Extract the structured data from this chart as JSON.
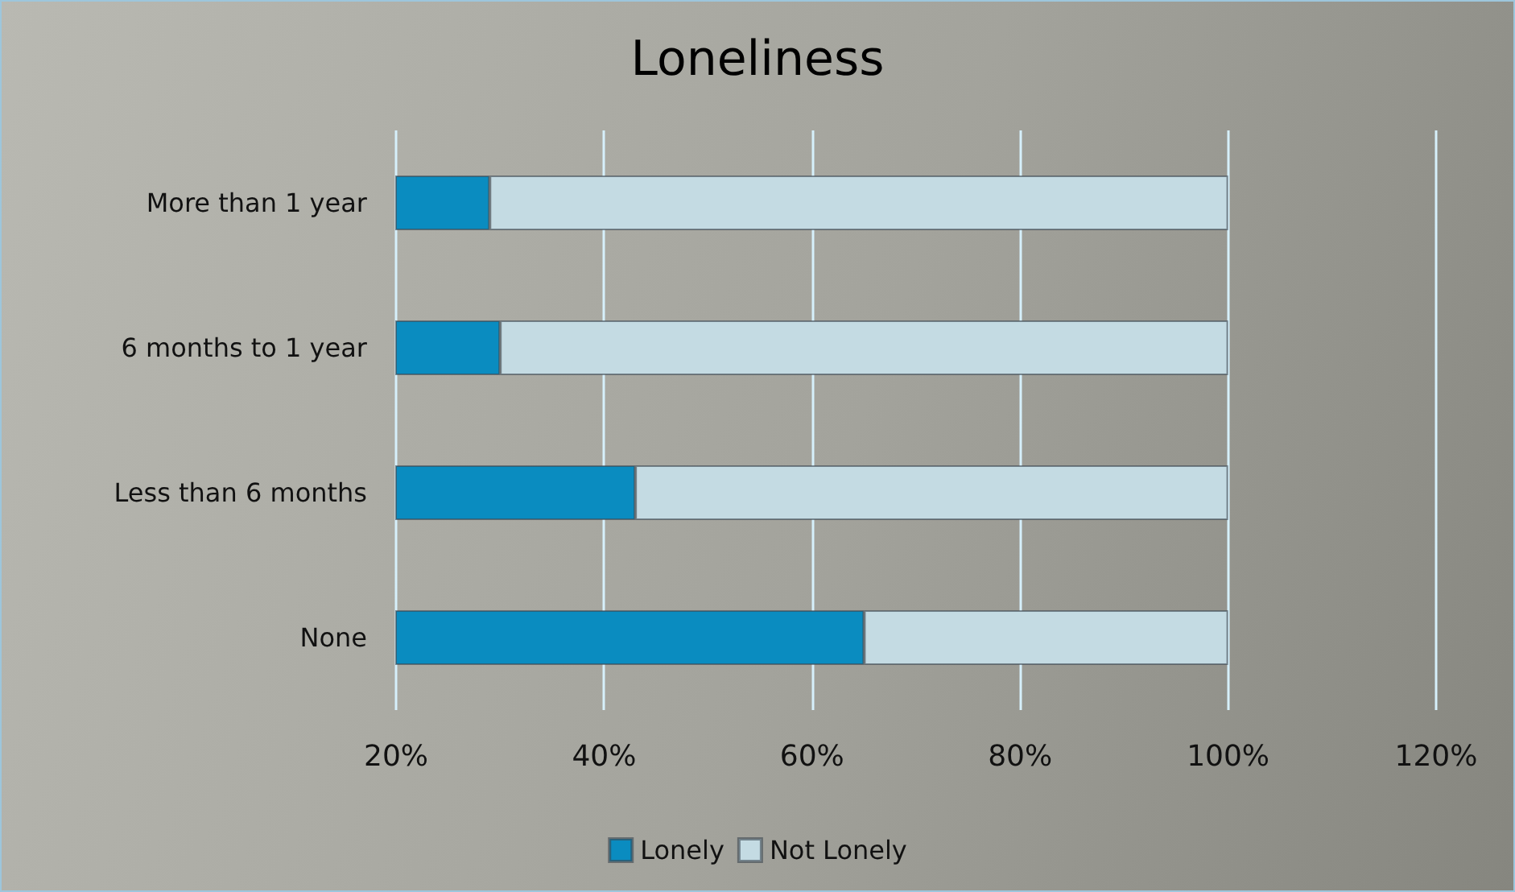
{
  "chart_data": {
    "type": "bar",
    "orientation": "horizontal",
    "stacked": true,
    "title": "Loneliness",
    "categories": [
      "More than 1 year",
      "6 months to 1 year",
      "Less than 6 months",
      "None"
    ],
    "series": [
      {
        "name": "Lonely",
        "color": "#0a8cc0",
        "values": [
          29,
          30,
          43,
          65
        ]
      },
      {
        "name": "Not Lonely",
        "color": "#c4dbe3",
        "values": [
          71,
          70,
          57,
          35
        ]
      }
    ],
    "xlim": [
      20,
      120
    ],
    "xticks": [
      {
        "value": 20,
        "label": "20%"
      },
      {
        "value": 40,
        "label": "40%"
      },
      {
        "value": 60,
        "label": "60%"
      },
      {
        "value": 80,
        "label": "80%"
      },
      {
        "value": 100,
        "label": "100%"
      },
      {
        "value": 120,
        "label": "120%"
      }
    ],
    "grid": "x",
    "legend": "bottom"
  }
}
